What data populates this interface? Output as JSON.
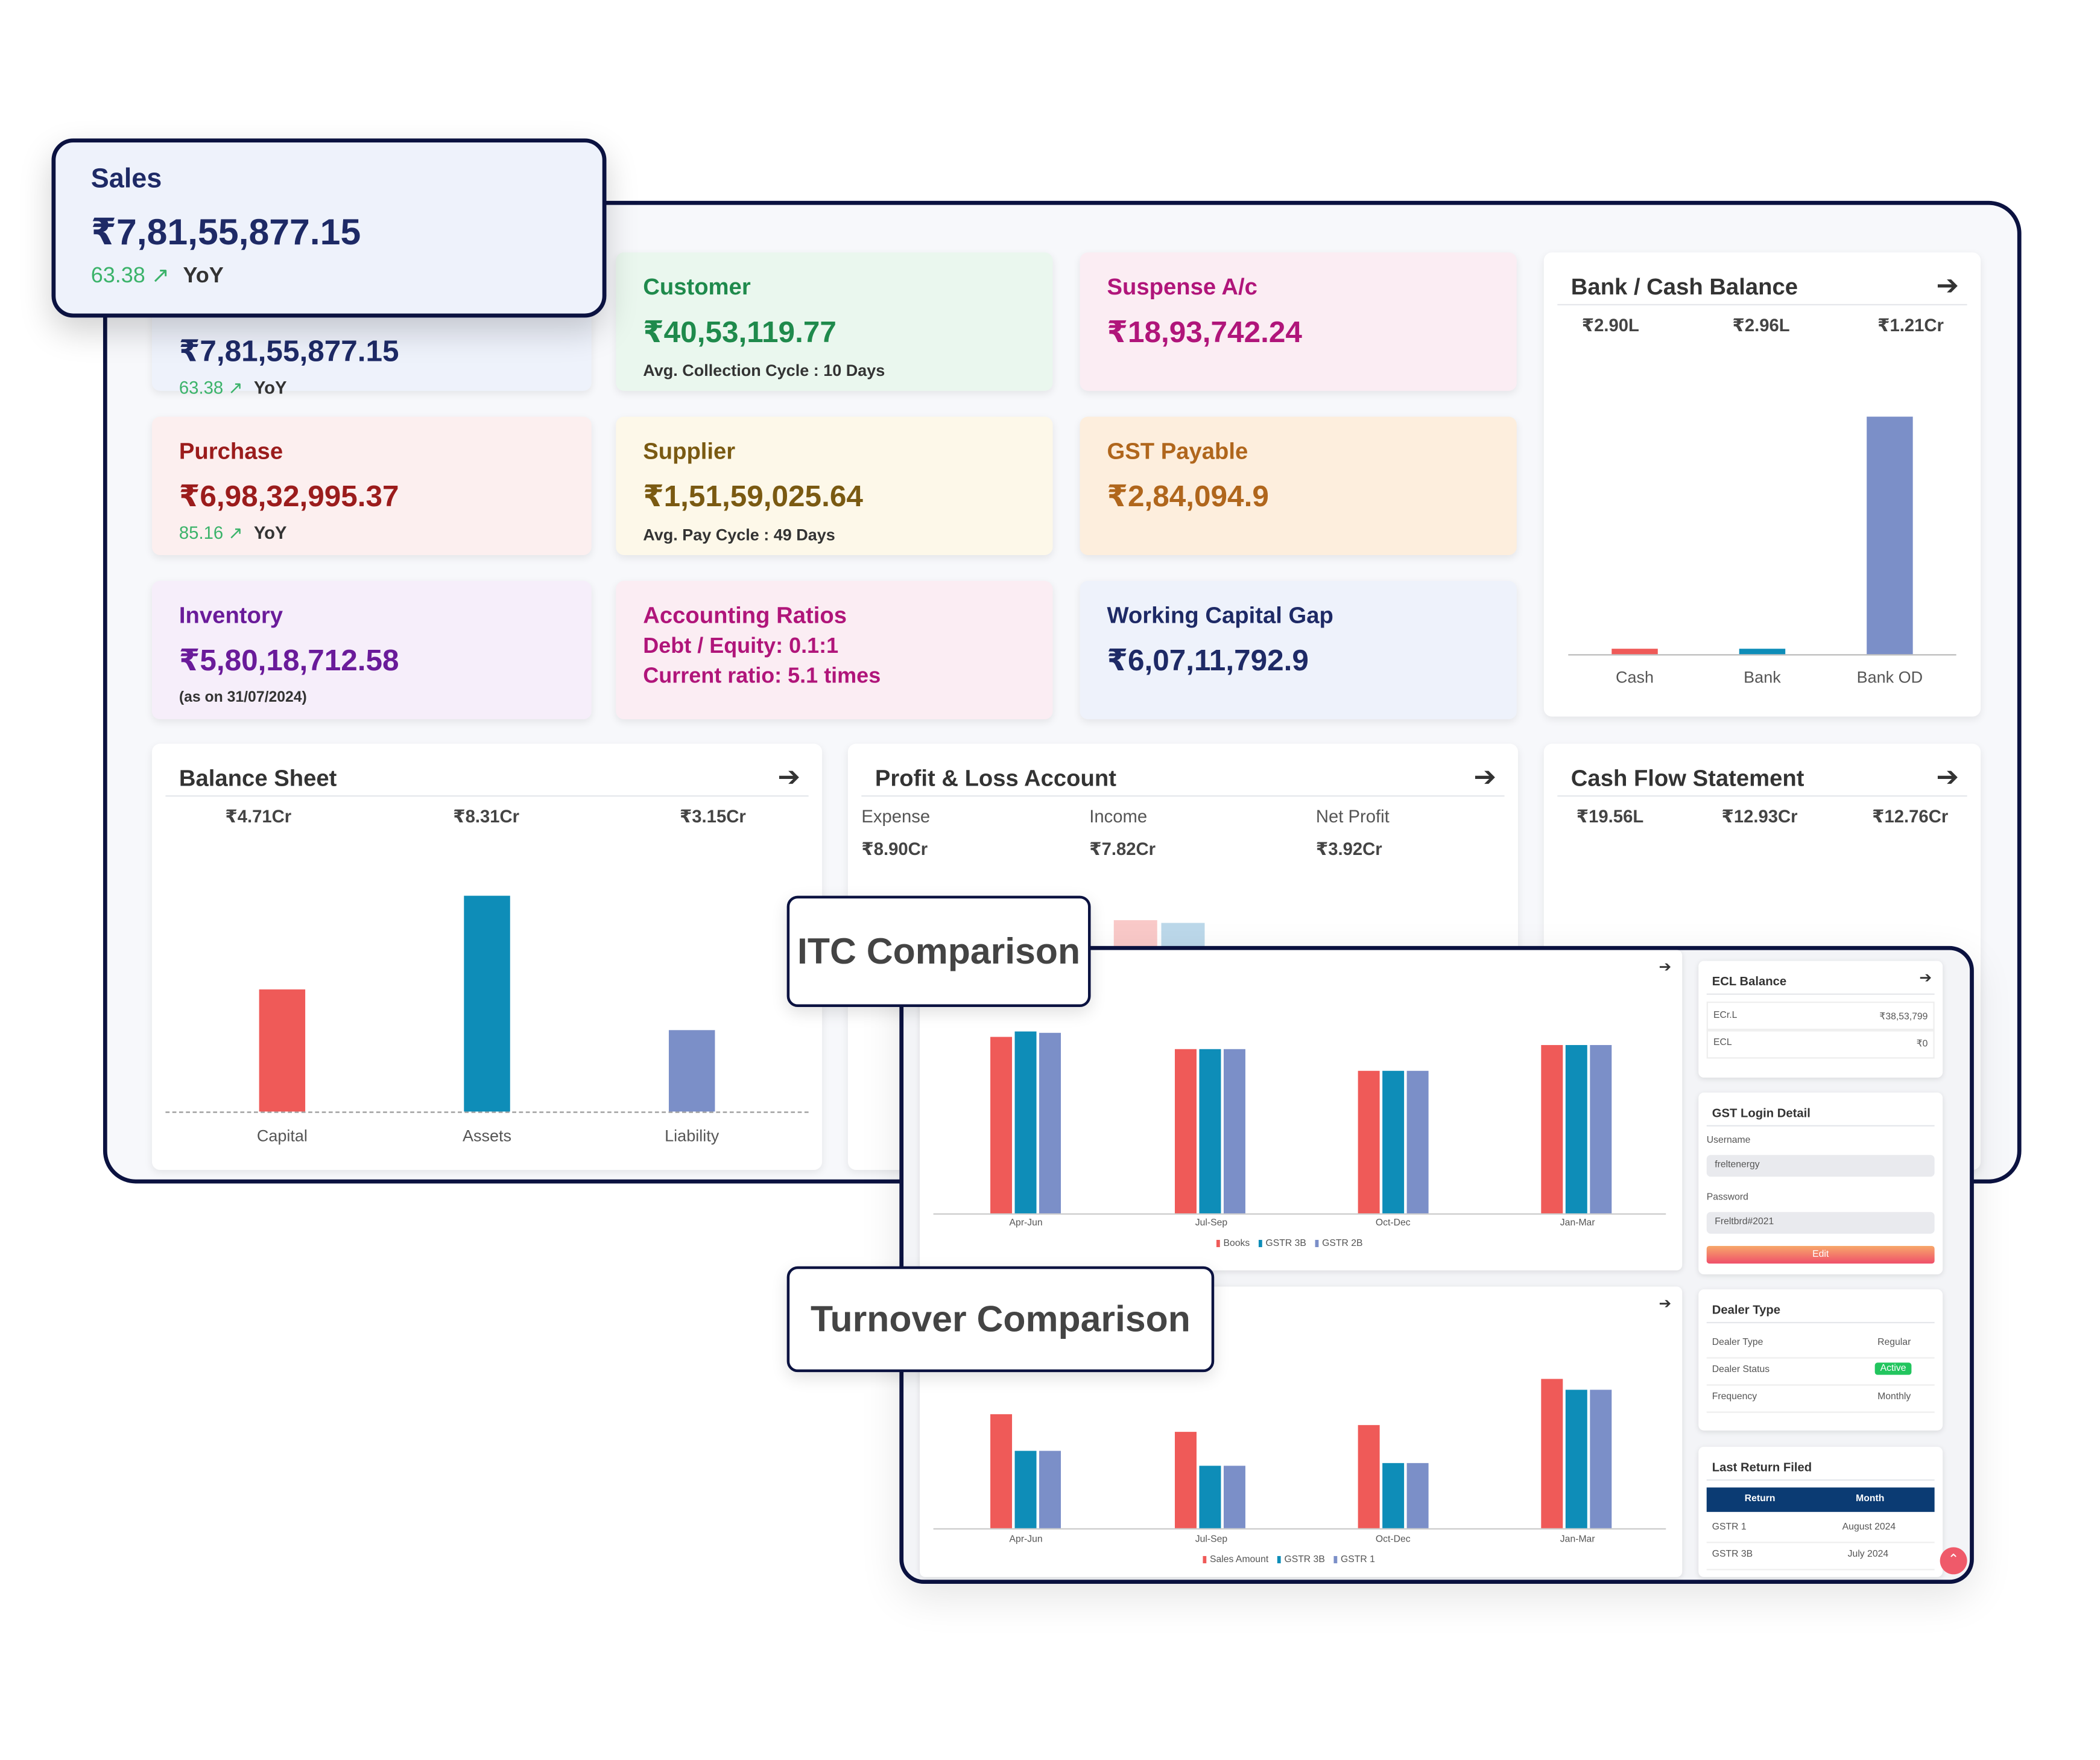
{
  "sales_popup": {
    "title": "Sales",
    "value": "₹7,81,55,877.15",
    "yoy_pct": "63.38",
    "yoy_label": "YoY"
  },
  "cards": {
    "sales": {
      "value": "₹7,81,55,877.15",
      "yoy_pct": "63.38",
      "yoy_label": "YoY"
    },
    "customer": {
      "title": "Customer",
      "value": "₹40,53,119.77",
      "sub": "Avg. Collection Cycle : 10 Days"
    },
    "suspense": {
      "title": "Suspense A/c",
      "value": "₹18,93,742.24"
    },
    "purchase": {
      "title": "Purchase",
      "value": "₹6,98,32,995.37",
      "yoy_pct": "85.16",
      "yoy_label": "YoY"
    },
    "supplier": {
      "title": "Supplier",
      "value": "₹1,51,59,025.64",
      "sub": "Avg. Pay Cycle : 49 Days"
    },
    "gst_payable": {
      "title": "GST Payable",
      "value": "₹2,84,094.9"
    },
    "inventory": {
      "title": "Inventory",
      "value": "₹5,80,18,712.58",
      "sub": "(as on 31/07/2024)"
    },
    "ratios": {
      "title": "Accounting Ratios",
      "line1": "Debt / Equity: 0.1:1",
      "line2": "Current ratio: 5.1 times"
    },
    "wc_gap": {
      "title": "Working Capital Gap",
      "value": "₹6,07,11,792.9"
    }
  },
  "bank_cash": {
    "title": "Bank / Cash Balance",
    "values": [
      "₹2.90L",
      "₹2.96L",
      "₹1.21Cr"
    ],
    "labels": [
      "Cash",
      "Bank",
      "Bank OD"
    ]
  },
  "balance_sheet": {
    "title": "Balance Sheet",
    "values": [
      "₹4.71Cr",
      "₹8.31Cr",
      "₹3.15Cr"
    ],
    "labels": [
      "Capital",
      "Assets",
      "Liability"
    ]
  },
  "pnl": {
    "title": "Profit & Loss Account",
    "labels": [
      "Expense",
      "Income",
      "Net Profit"
    ],
    "values": [
      "₹8.90Cr",
      "₹7.82Cr",
      "₹3.92Cr"
    ]
  },
  "cash_flow": {
    "title": "Cash Flow Statement",
    "values": [
      "₹19.56L",
      "₹12.93Cr",
      "₹12.76Cr"
    ]
  },
  "itc": {
    "label": "ITC Comparison",
    "quarters": [
      "Apr-Jun",
      "Jul-Sep",
      "Oct-Dec",
      "Jan-Mar"
    ],
    "legend": [
      "Books",
      "GSTR 3B",
      "GSTR 2B"
    ]
  },
  "turnover": {
    "label": "Turnover Comparison",
    "quarters": [
      "Apr-Jun",
      "Jul-Sep",
      "Oct-Dec",
      "Jan-Mar"
    ],
    "legend": [
      "Sales Amount",
      "GSTR 3B",
      "GSTR 1"
    ]
  },
  "ecl": {
    "title": "ECL Balance",
    "rows": [
      {
        "k": "ECr.L",
        "v": "₹38,53,799"
      },
      {
        "k": "ECL",
        "v": "₹0"
      }
    ]
  },
  "gst_login": {
    "title": "GST Login Detail",
    "username_label": "Username",
    "username": "freltenergy",
    "password_label": "Password",
    "password": "Freltbrd#2021",
    "edit": "Edit"
  },
  "dealer": {
    "title": "Dealer Type",
    "rows": [
      {
        "k": "Dealer Type",
        "v": "Regular"
      },
      {
        "k": "Dealer Status",
        "v": "Active"
      },
      {
        "k": "Frequency",
        "v": "Monthly"
      }
    ]
  },
  "last_return": {
    "title": "Last Return Filed",
    "headers": [
      "Return",
      "Month"
    ],
    "rows": [
      [
        "GSTR 1",
        "August 2024"
      ],
      [
        "GSTR 3B",
        "July 2024"
      ]
    ]
  },
  "colors": {
    "red": "#ef5a58",
    "teal": "#0e8db8",
    "blue": "#7b8fc8",
    "navy": "#0b1240"
  },
  "chart_data": [
    {
      "type": "bar",
      "title": "Bank / Cash Balance",
      "categories": [
        "Cash",
        "Bank",
        "Bank OD"
      ],
      "values": [
        0.029,
        0.0296,
        1.21
      ],
      "unit": "Cr"
    },
    {
      "type": "bar",
      "title": "Balance Sheet",
      "categories": [
        "Capital",
        "Assets",
        "Liability"
      ],
      "values": [
        4.71,
        8.31,
        3.15
      ],
      "unit": "Cr"
    },
    {
      "type": "bar",
      "title": "ITC Comparison",
      "categories": [
        "Apr-Jun",
        "Jul-Sep",
        "Oct-Dec",
        "Jan-Mar"
      ],
      "series": [
        {
          "name": "Books",
          "values": [
            100,
            93,
            81,
            95
          ]
        },
        {
          "name": "GSTR 3B",
          "values": [
            103,
            93,
            81,
            95
          ]
        },
        {
          "name": "GSTR 2B",
          "values": [
            102,
            93,
            81,
            95
          ]
        }
      ]
    },
    {
      "type": "bar",
      "title": "Turnover Comparison",
      "categories": [
        "Apr-Jun",
        "Jul-Sep",
        "Oct-Dec",
        "Jan-Mar"
      ],
      "series": [
        {
          "name": "Sales Amount",
          "values": [
            76,
            65,
            69,
            100
          ]
        },
        {
          "name": "GSTR 3B",
          "values": [
            52,
            42,
            44,
            93
          ]
        },
        {
          "name": "GSTR 1",
          "values": [
            52,
            42,
            44,
            93
          ]
        }
      ]
    }
  ]
}
